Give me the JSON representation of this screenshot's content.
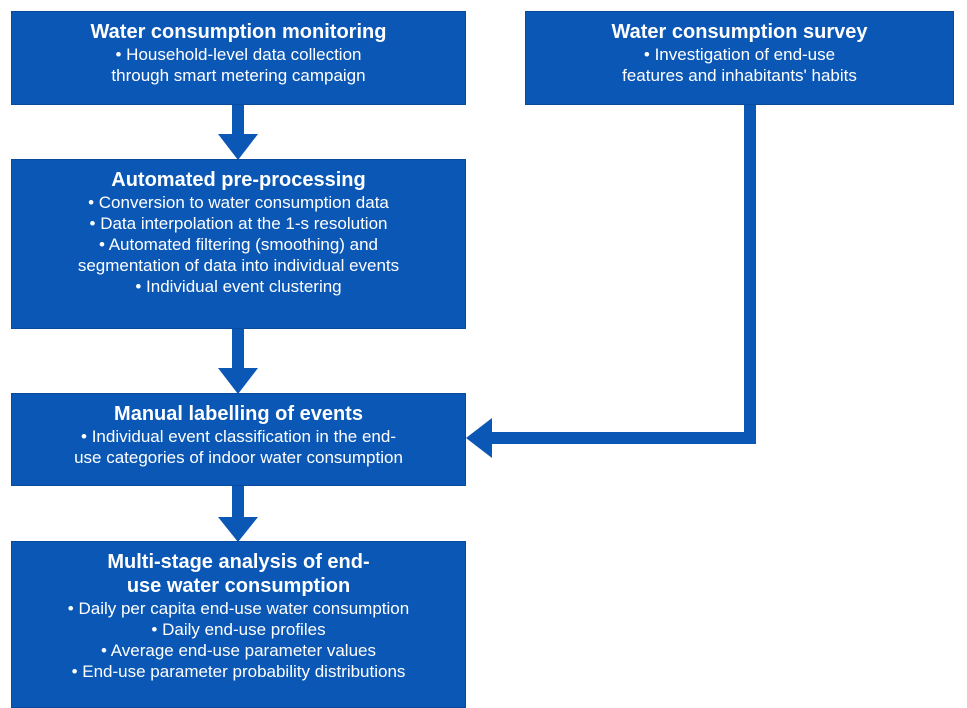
{
  "nodes": [
    {
      "title": "Water consumption monitoring",
      "items": [
        "• Household-level data collection through smart metering campaign"
      ]
    },
    {
      "title": "Water consumption survey",
      "items": [
        "• Investigation of end-use features and inhabitants' habits"
      ]
    },
    {
      "title": "Automated pre-processing",
      "items": [
        "• Conversion to water consumption data",
        "• Data interpolation at the 1-s resolution",
        "• Automated filtering (smoothing) and segmentation of data into individual events",
        "• Individual event clustering"
      ]
    },
    {
      "title": "Manual labelling of events",
      "items": [
        "• Individual event classification in the end-use categories of indoor water consumption"
      ]
    },
    {
      "title": "Multi-stage analysis of end-use water consumption",
      "items": [
        "• Daily per capita end-use water consumption",
        "• Daily end-use profiles",
        "• Average end-use parameter values",
        "• End-use parameter probability distributions"
      ]
    }
  ]
}
